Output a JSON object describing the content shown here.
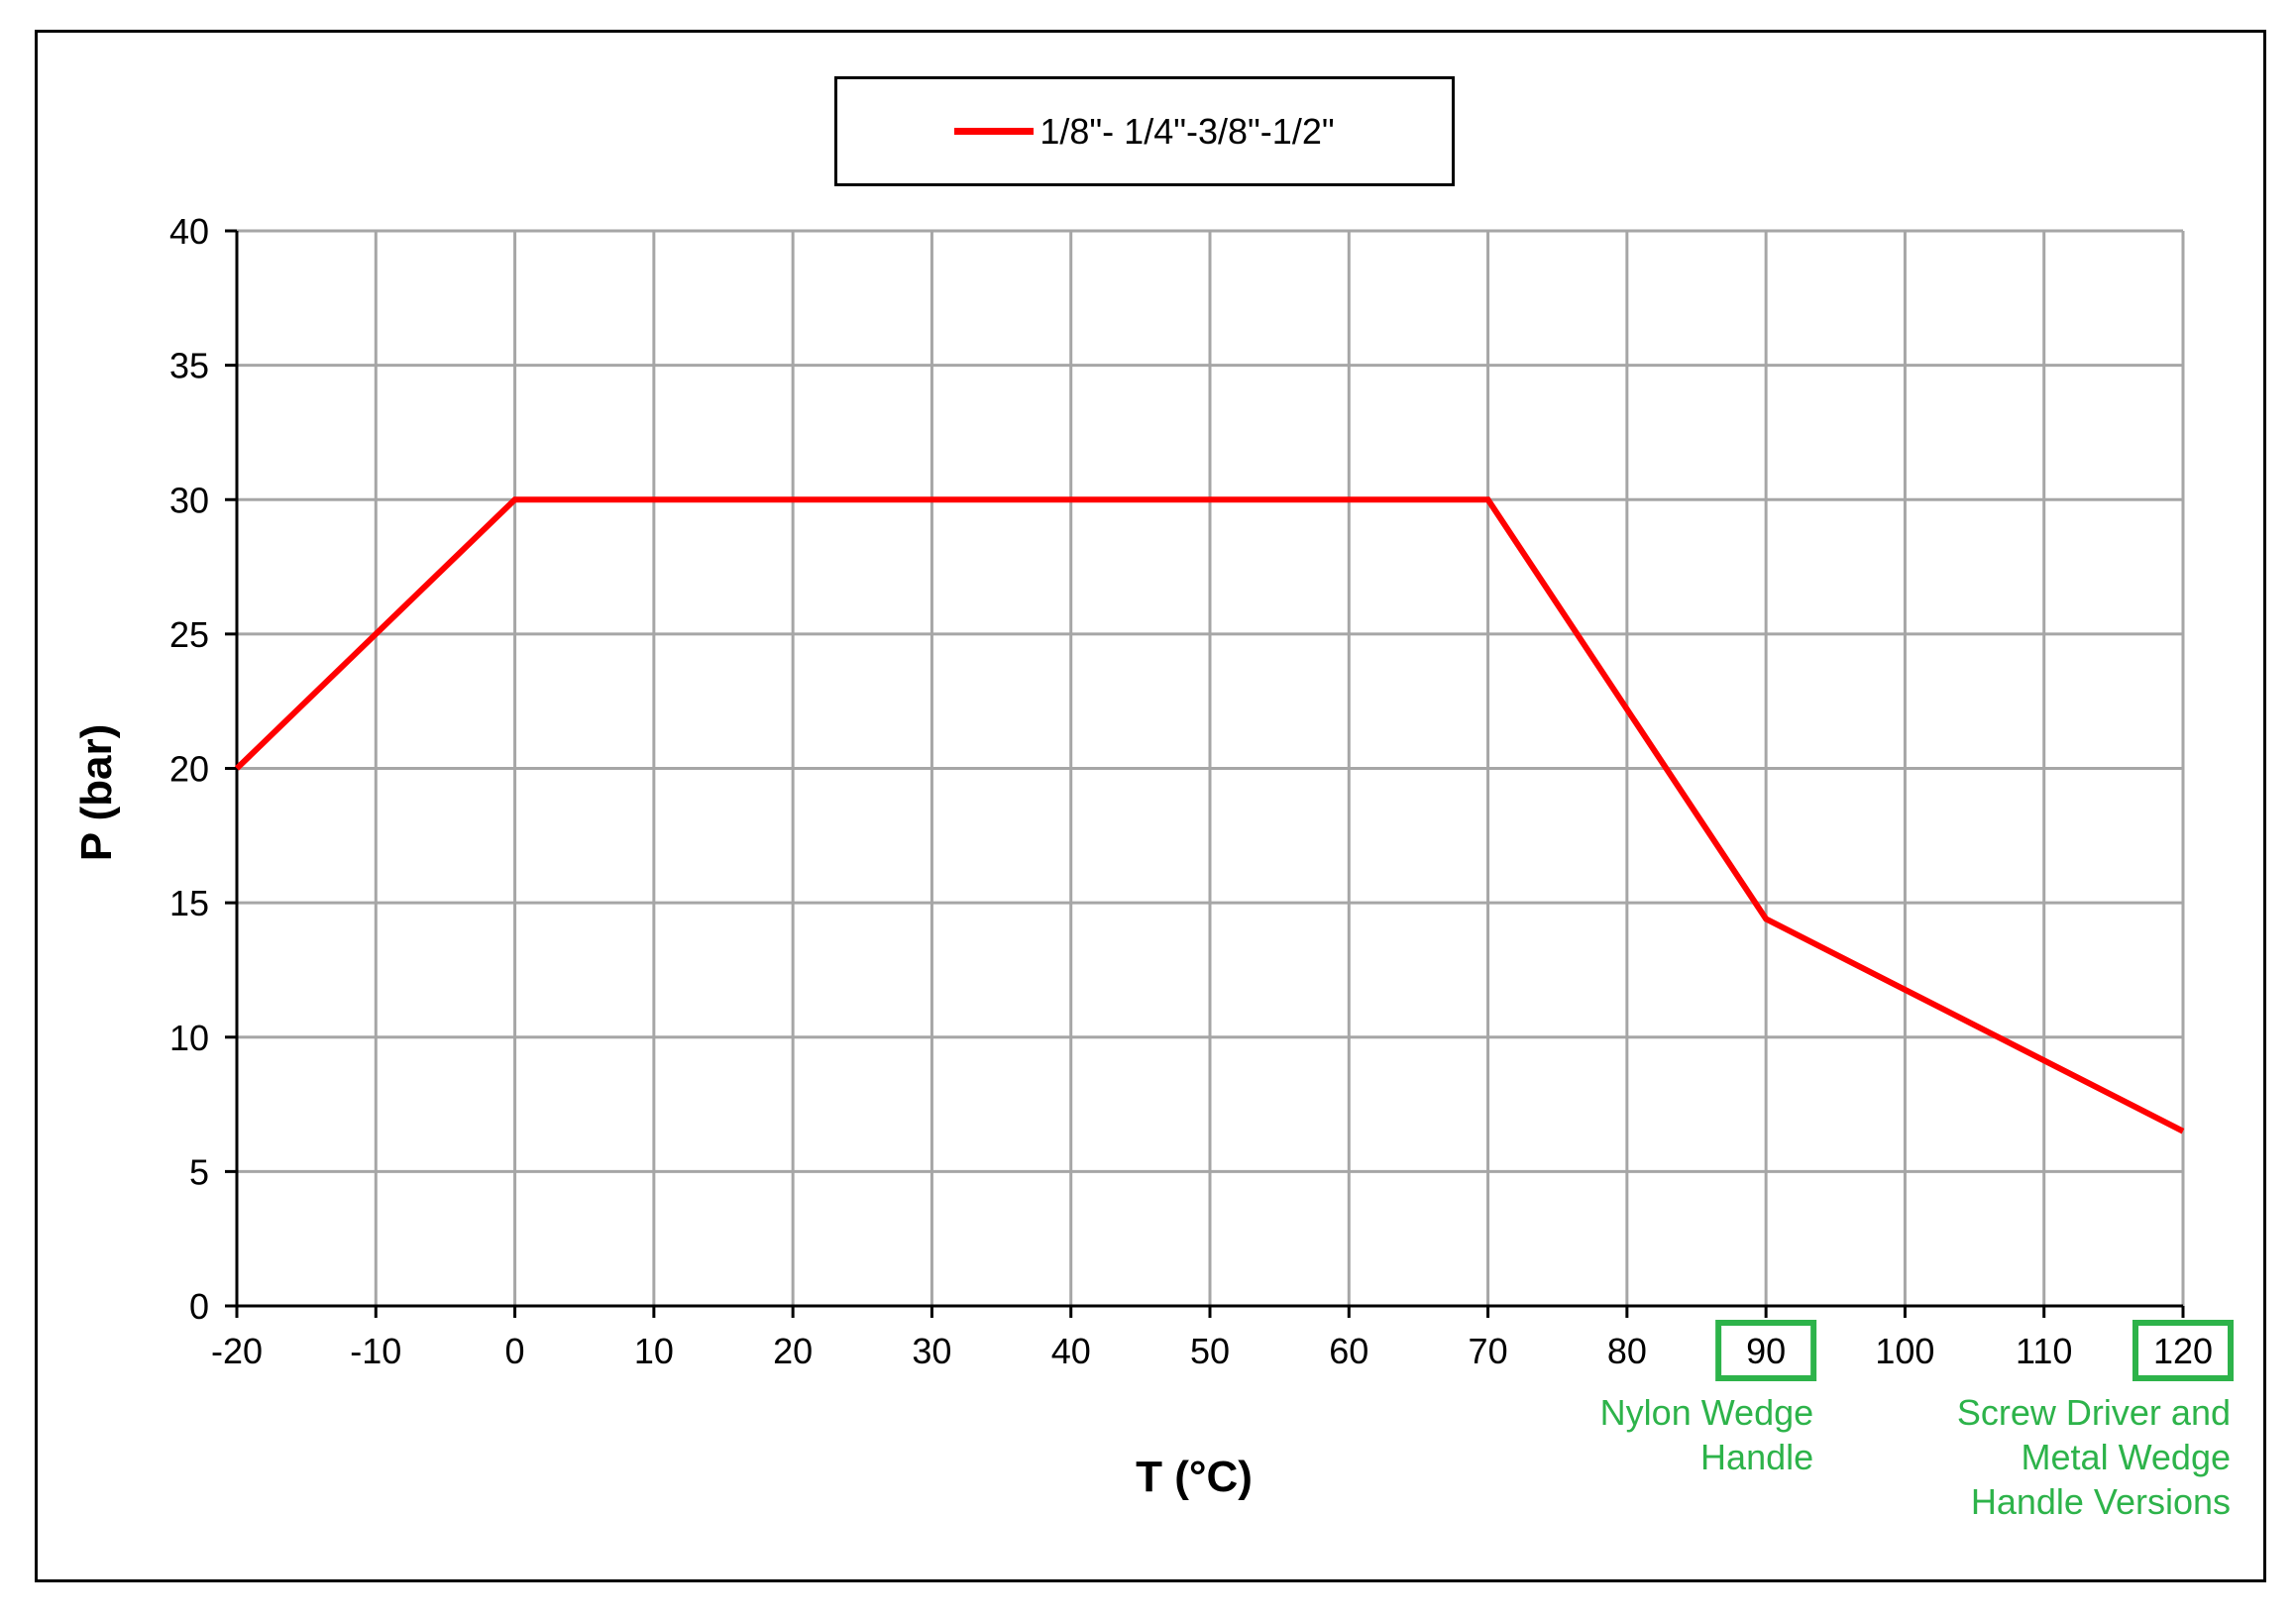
{
  "chart_data": {
    "type": "line",
    "series": [
      {
        "name": "1/8\"- 1/4\"-3/8\"-1/2\"",
        "color": "#ff0000",
        "x": [
          -20,
          0,
          70,
          90,
          120
        ],
        "y": [
          20,
          30,
          30,
          14.4,
          6.5
        ]
      }
    ],
    "xlabel": "T (°C)",
    "ylabel": "P (bar)",
    "xlim": [
      -20,
      120
    ],
    "ylim": [
      0,
      40
    ],
    "xticks": [
      "-20",
      "-10",
      "0",
      "10",
      "20",
      "30",
      "40",
      "50",
      "60",
      "70",
      "80",
      "90",
      "100",
      "110",
      "120"
    ],
    "yticks": [
      "0",
      "5",
      "10",
      "15",
      "20",
      "25",
      "30",
      "35",
      "40"
    ],
    "grid": true,
    "legend_position": "top-center",
    "annotations": [
      {
        "x": 90,
        "lines": [
          "Nylon Wedge",
          "Handle"
        ],
        "color": "#2db34a"
      },
      {
        "x": 120,
        "lines": [
          "Screw Driver and",
          "Metal Wedge",
          "Handle Versions"
        ],
        "color": "#2db34a"
      }
    ],
    "highlight_color": "#2db34a"
  }
}
